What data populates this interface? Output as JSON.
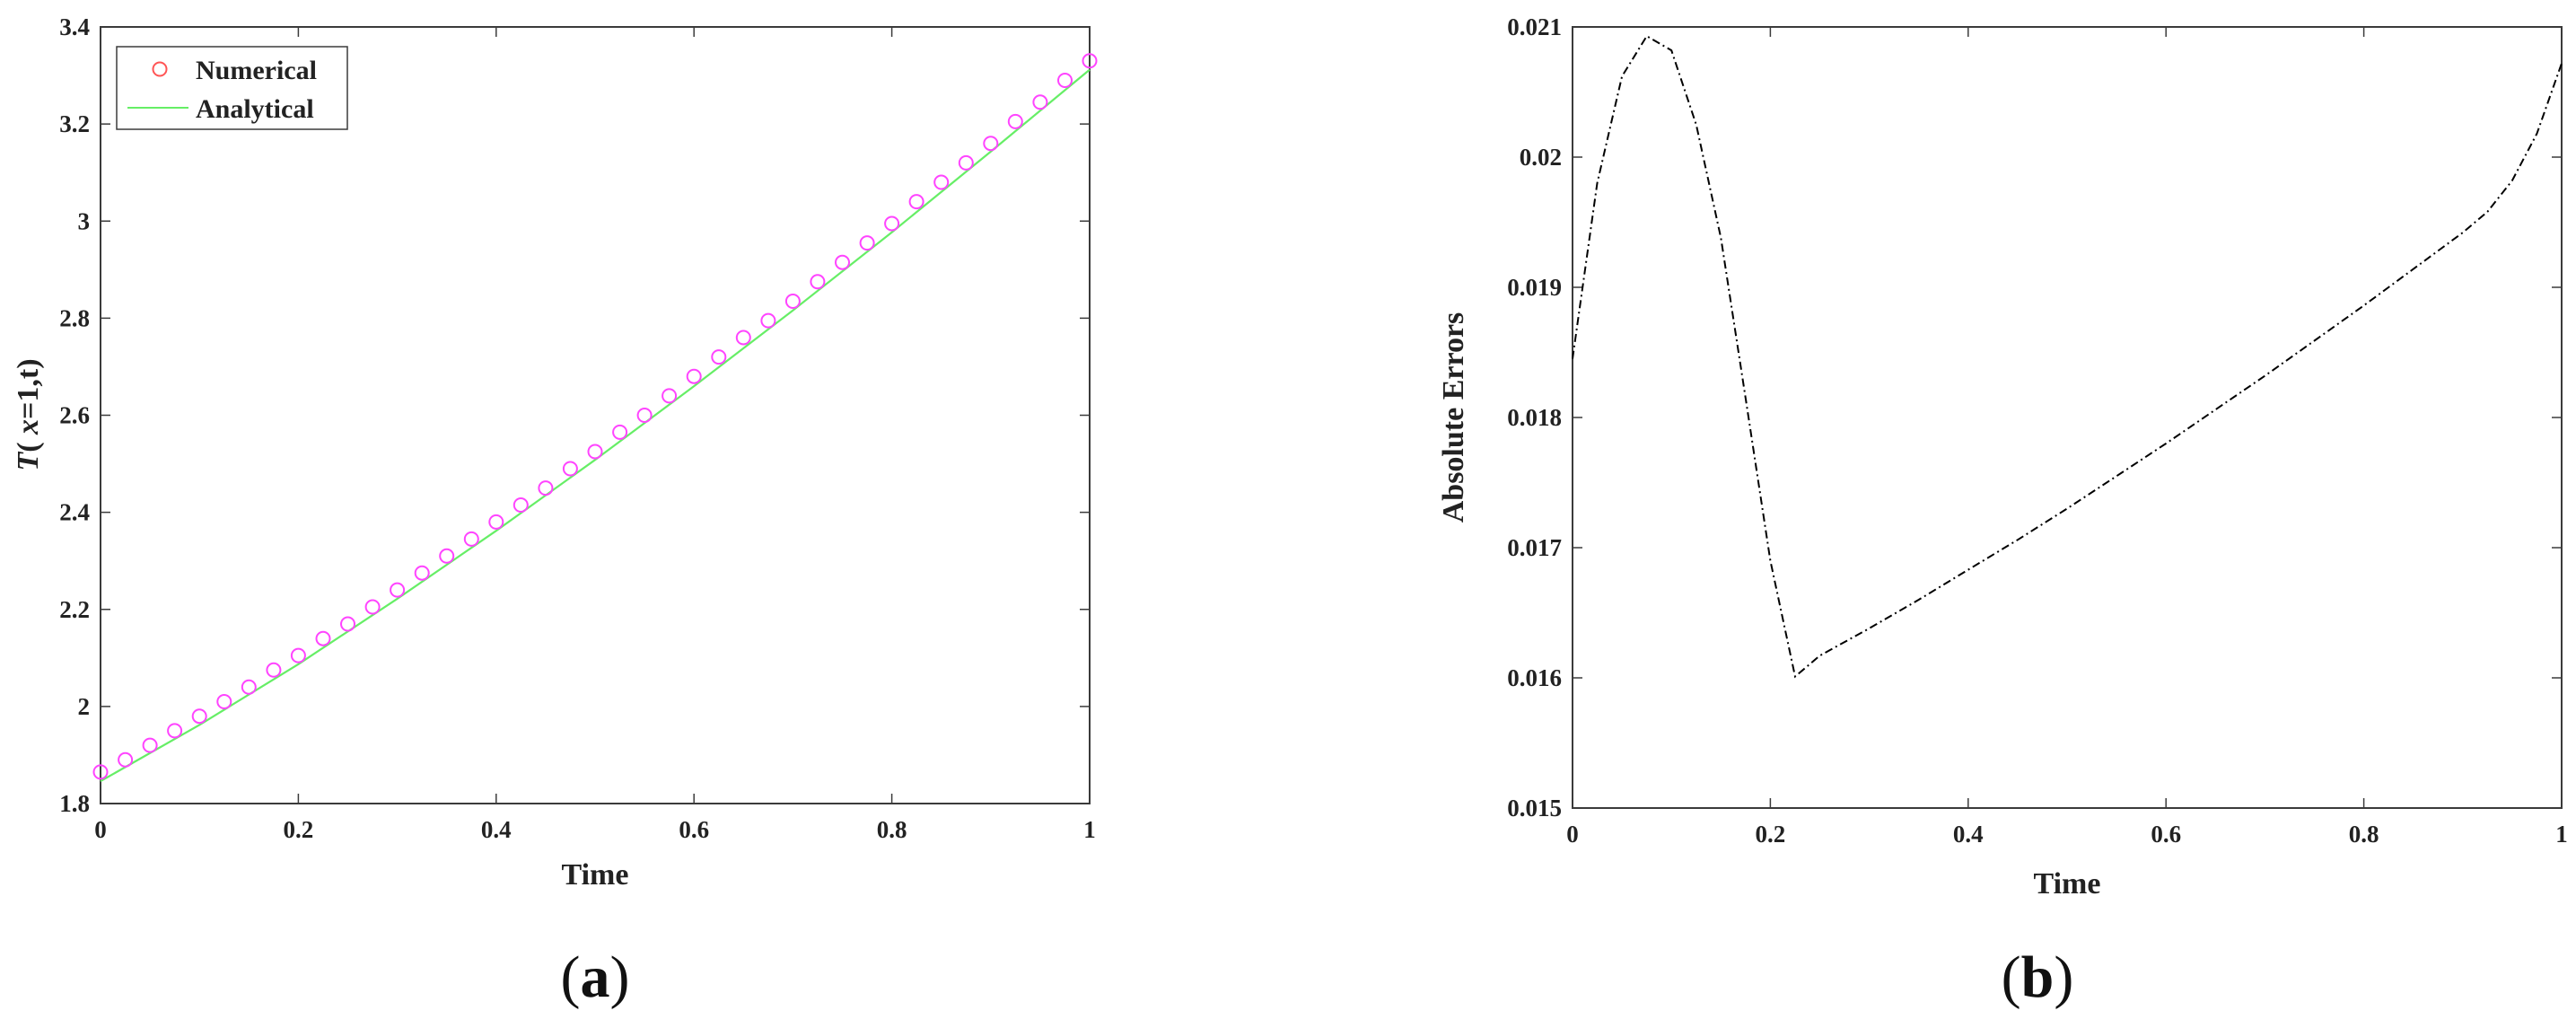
{
  "chart_data": [
    {
      "type": "scatter",
      "panel_label": {
        "open": "(",
        "letter": "a",
        "close": ")"
      },
      "xlabel": "Time",
      "ylabel": {
        "prefix": "T",
        "middle": "( ",
        "var": "x",
        "suffix": "=1,t)"
      },
      "xlim": [
        0,
        1
      ],
      "ylim": [
        1.8,
        3.4
      ],
      "xticks": [
        "0",
        "0.2",
        "0.4",
        "0.6",
        "0.8",
        "1"
      ],
      "yticks": [
        "1.8",
        "2",
        "2.2",
        "2.4",
        "2.6",
        "2.8",
        "3",
        "3.2",
        "3.4"
      ],
      "legend_position": "top-left",
      "grid": false,
      "series": [
        {
          "name": "Numerical",
          "marker": "circle",
          "color": "#ff44ff",
          "legend_color": "#ff5555",
          "x": [
            0,
            0.025,
            0.05,
            0.075,
            0.1,
            0.125,
            0.15,
            0.175,
            0.2,
            0.225,
            0.25,
            0.275,
            0.3,
            0.325,
            0.35,
            0.375,
            0.4,
            0.425,
            0.45,
            0.475,
            0.5,
            0.525,
            0.55,
            0.575,
            0.6,
            0.625,
            0.65,
            0.675,
            0.7,
            0.725,
            0.75,
            0.775,
            0.8,
            0.825,
            0.85,
            0.875,
            0.9,
            0.925,
            0.95,
            0.975,
            1.0
          ],
          "y": [
            1.865,
            1.89,
            1.92,
            1.95,
            1.98,
            2.01,
            2.04,
            2.075,
            2.105,
            2.14,
            2.17,
            2.205,
            2.24,
            2.275,
            2.31,
            2.345,
            2.38,
            2.415,
            2.45,
            2.49,
            2.525,
            2.565,
            2.6,
            2.64,
            2.68,
            2.72,
            2.76,
            2.795,
            2.835,
            2.875,
            2.915,
            2.955,
            2.995,
            3.04,
            3.08,
            3.12,
            3.16,
            3.205,
            3.245,
            3.29,
            3.33
          ]
        },
        {
          "name": "Analytical",
          "marker": "line",
          "color": "#66ee66",
          "x": [
            0,
            0.1,
            0.2,
            0.3,
            0.4,
            0.5,
            0.6,
            0.7,
            0.8,
            0.9,
            1.0
          ],
          "y": [
            1.846,
            1.962,
            2.087,
            2.222,
            2.362,
            2.508,
            2.66,
            2.816,
            2.977,
            3.143,
            3.312
          ]
        }
      ]
    },
    {
      "type": "line",
      "panel_label": {
        "open": "(",
        "letter": "b",
        "close": ")"
      },
      "xlabel": "Time",
      "ylabel": "Absolute Errors",
      "xlim": [
        0,
        1
      ],
      "ylim": [
        0.015,
        0.021
      ],
      "xticks": [
        "0",
        "0.2",
        "0.4",
        "0.6",
        "0.8",
        "1"
      ],
      "yticks": [
        "0.015",
        "0.016",
        "0.017",
        "0.018",
        "0.019",
        "0.02",
        "0.021"
      ],
      "grid": false,
      "series": [
        {
          "line_style": "dash-dot",
          "color": "#000000",
          "x": [
            0,
            0.025,
            0.05,
            0.075,
            0.1,
            0.125,
            0.15,
            0.175,
            0.2,
            0.225,
            0.25,
            0.3,
            0.35,
            0.4,
            0.45,
            0.5,
            0.55,
            0.6,
            0.65,
            0.7,
            0.75,
            0.8,
            0.85,
            0.9,
            0.925,
            0.95,
            0.975,
            1.0
          ],
          "y": [
            0.01845,
            0.0198,
            0.02062,
            0.02093,
            0.02082,
            0.02025,
            0.01938,
            0.01815,
            0.0169,
            0.01601,
            0.01617,
            0.01638,
            0.0166,
            0.01683,
            0.01706,
            0.0173,
            0.01755,
            0.0178,
            0.01806,
            0.01832,
            0.01859,
            0.01886,
            0.01914,
            0.01942,
            0.01958,
            0.01982,
            0.02018,
            0.02072
          ]
        }
      ]
    }
  ]
}
